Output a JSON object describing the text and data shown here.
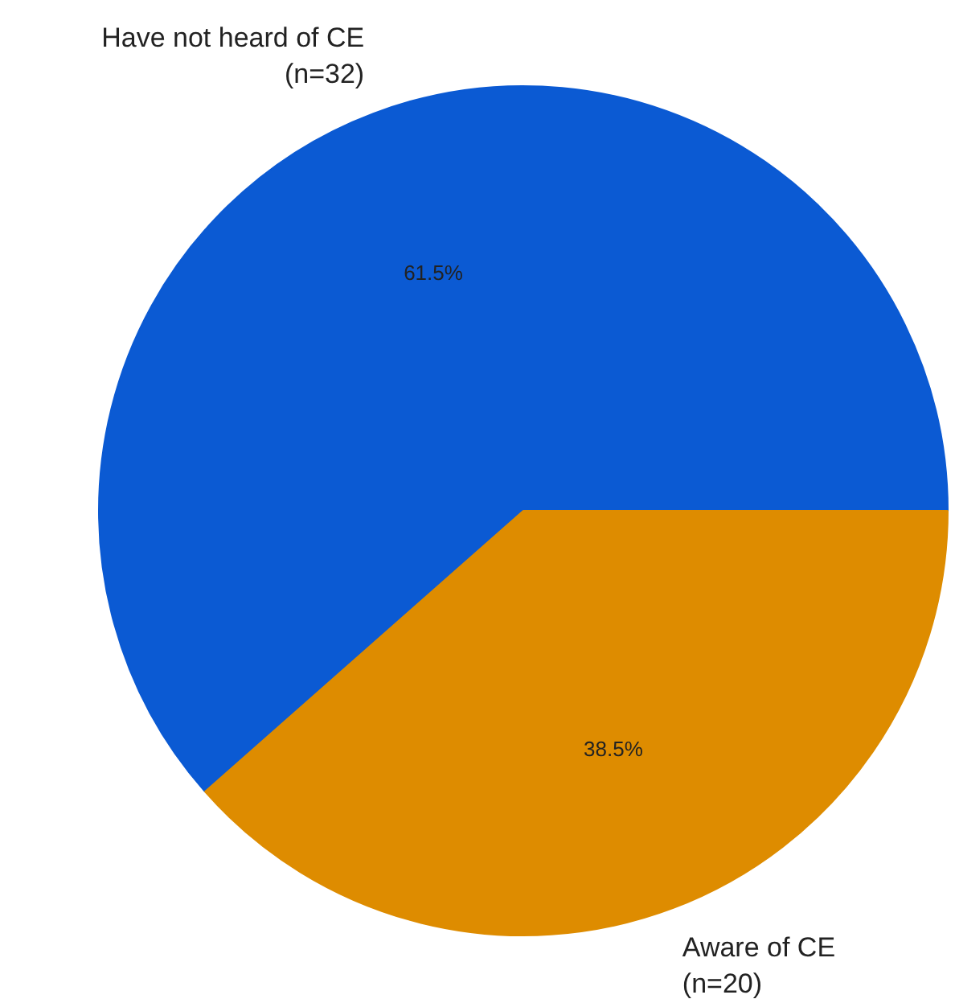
{
  "chart_data": {
    "type": "pie",
    "categories": [
      "Have not heard of CE\n(n=32)",
      "Aware of CE\n(n=20)"
    ],
    "values": [
      61.5,
      38.5
    ],
    "colors": [
      "#0b5ad3",
      "#de8c00"
    ],
    "value_labels": [
      "61.5%",
      "38.5%"
    ]
  }
}
